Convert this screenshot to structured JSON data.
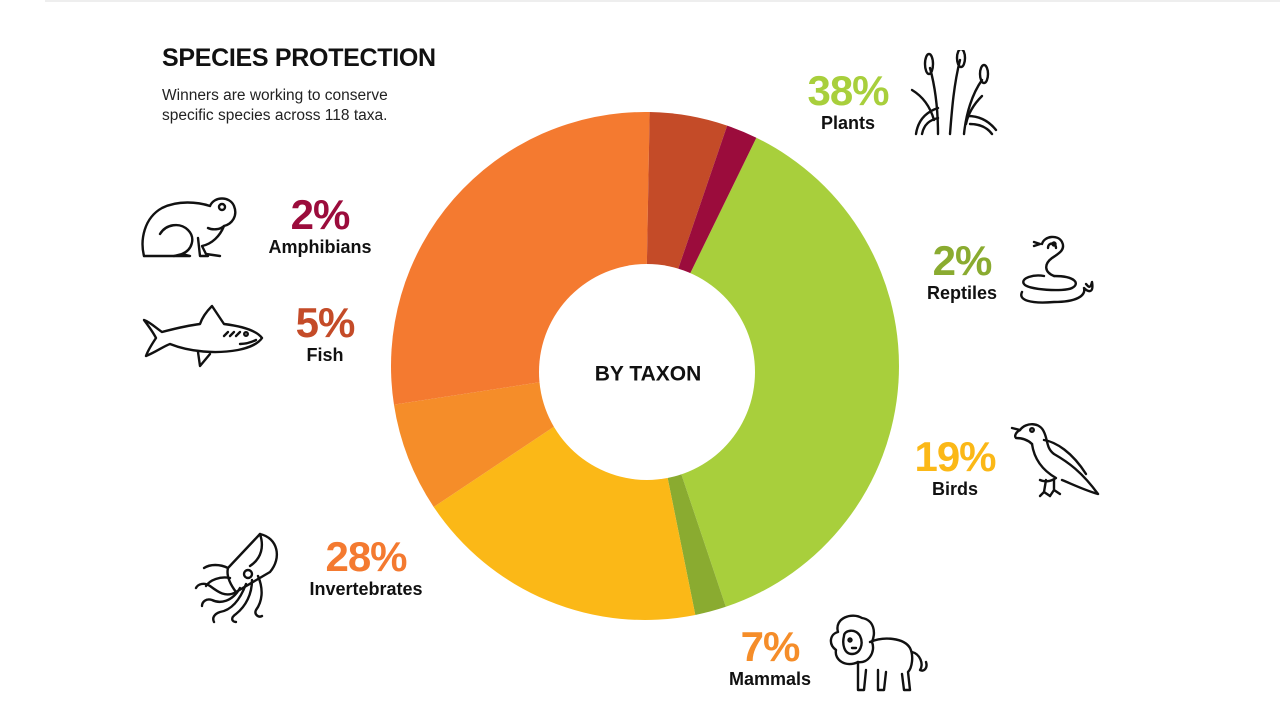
{
  "header": {
    "title": "SPECIES PROTECTION",
    "subtitle": "Winners are working to conserve specific species across 118 taxa."
  },
  "chart_data": {
    "type": "pie",
    "center_label": "BY TAXON",
    "slices": [
      {
        "name": "Plants",
        "value": 38,
        "label": "38%",
        "color": "#a8cf3c",
        "icon": "plants-icon"
      },
      {
        "name": "Reptiles",
        "value": 2,
        "label": "2%",
        "color": "#8aab30",
        "icon": "snake-icon"
      },
      {
        "name": "Birds",
        "value": 19,
        "label": "19%",
        "color": "#fbb817",
        "icon": "bird-icon"
      },
      {
        "name": "Mammals",
        "value": 7,
        "label": "7%",
        "color": "#f58d29",
        "icon": "lion-icon"
      },
      {
        "name": "Invertebrates",
        "value": 28,
        "label": "28%",
        "color": "#f47a30",
        "icon": "squid-icon"
      },
      {
        "name": "Fish",
        "value": 5,
        "label": "5%",
        "color": "#c44b28",
        "icon": "shark-icon"
      },
      {
        "name": "Amphibians",
        "value": 2,
        "label": "2%",
        "color": "#9b0c3c",
        "icon": "frog-icon"
      }
    ]
  }
}
